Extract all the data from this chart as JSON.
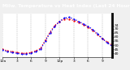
{
  "title": "Milw. Temperature vs Heat Index (Last 24 Hours)",
  "line_temp_color": "#ff0000",
  "line_heat_color": "#0000ff",
  "background_color": "#f0f0f0",
  "plot_bg_color": "#ffffff",
  "title_bg_color": "#000000",
  "title_text_color": "#ffffff",
  "grid_color": "#aaaaaa",
  "border_color": "#000000",
  "x_values": [
    0,
    1,
    2,
    3,
    4,
    5,
    6,
    7,
    8,
    9,
    10,
    11,
    12,
    13,
    14,
    15,
    16,
    17,
    18,
    19,
    20,
    21,
    22,
    23
  ],
  "temp_values": [
    45,
    43,
    42,
    41,
    40,
    40,
    41,
    43,
    46,
    56,
    66,
    74,
    79,
    82,
    82,
    80,
    78,
    75,
    72,
    68,
    63,
    58,
    54,
    50
  ],
  "heat_values": [
    44,
    42,
    41,
    40,
    39,
    39,
    40,
    42,
    45,
    55,
    65,
    73,
    79,
    83,
    84,
    82,
    79,
    76,
    73,
    69,
    64,
    58,
    53,
    49
  ],
  "ylim_min": 35,
  "ylim_max": 88,
  "yticks": [
    74,
    70,
    65,
    60,
    55,
    50,
    45,
    40
  ],
  "ytick_labels": [
    "74",
    "70",
    "65",
    "60",
    "55",
    "50",
    "45",
    "40"
  ],
  "xlim_min": 0,
  "xlim_max": 23,
  "xtick_positions": [
    0,
    3,
    6,
    9,
    12,
    15,
    18,
    21
  ],
  "xtick_labels": [
    "12a",
    "3",
    "6",
    "9",
    "12p",
    "3",
    "6",
    "9"
  ],
  "title_fontsize": 4.2,
  "tick_fontsize": 3.2,
  "linewidth": 0.9,
  "dot_size": 1.2
}
